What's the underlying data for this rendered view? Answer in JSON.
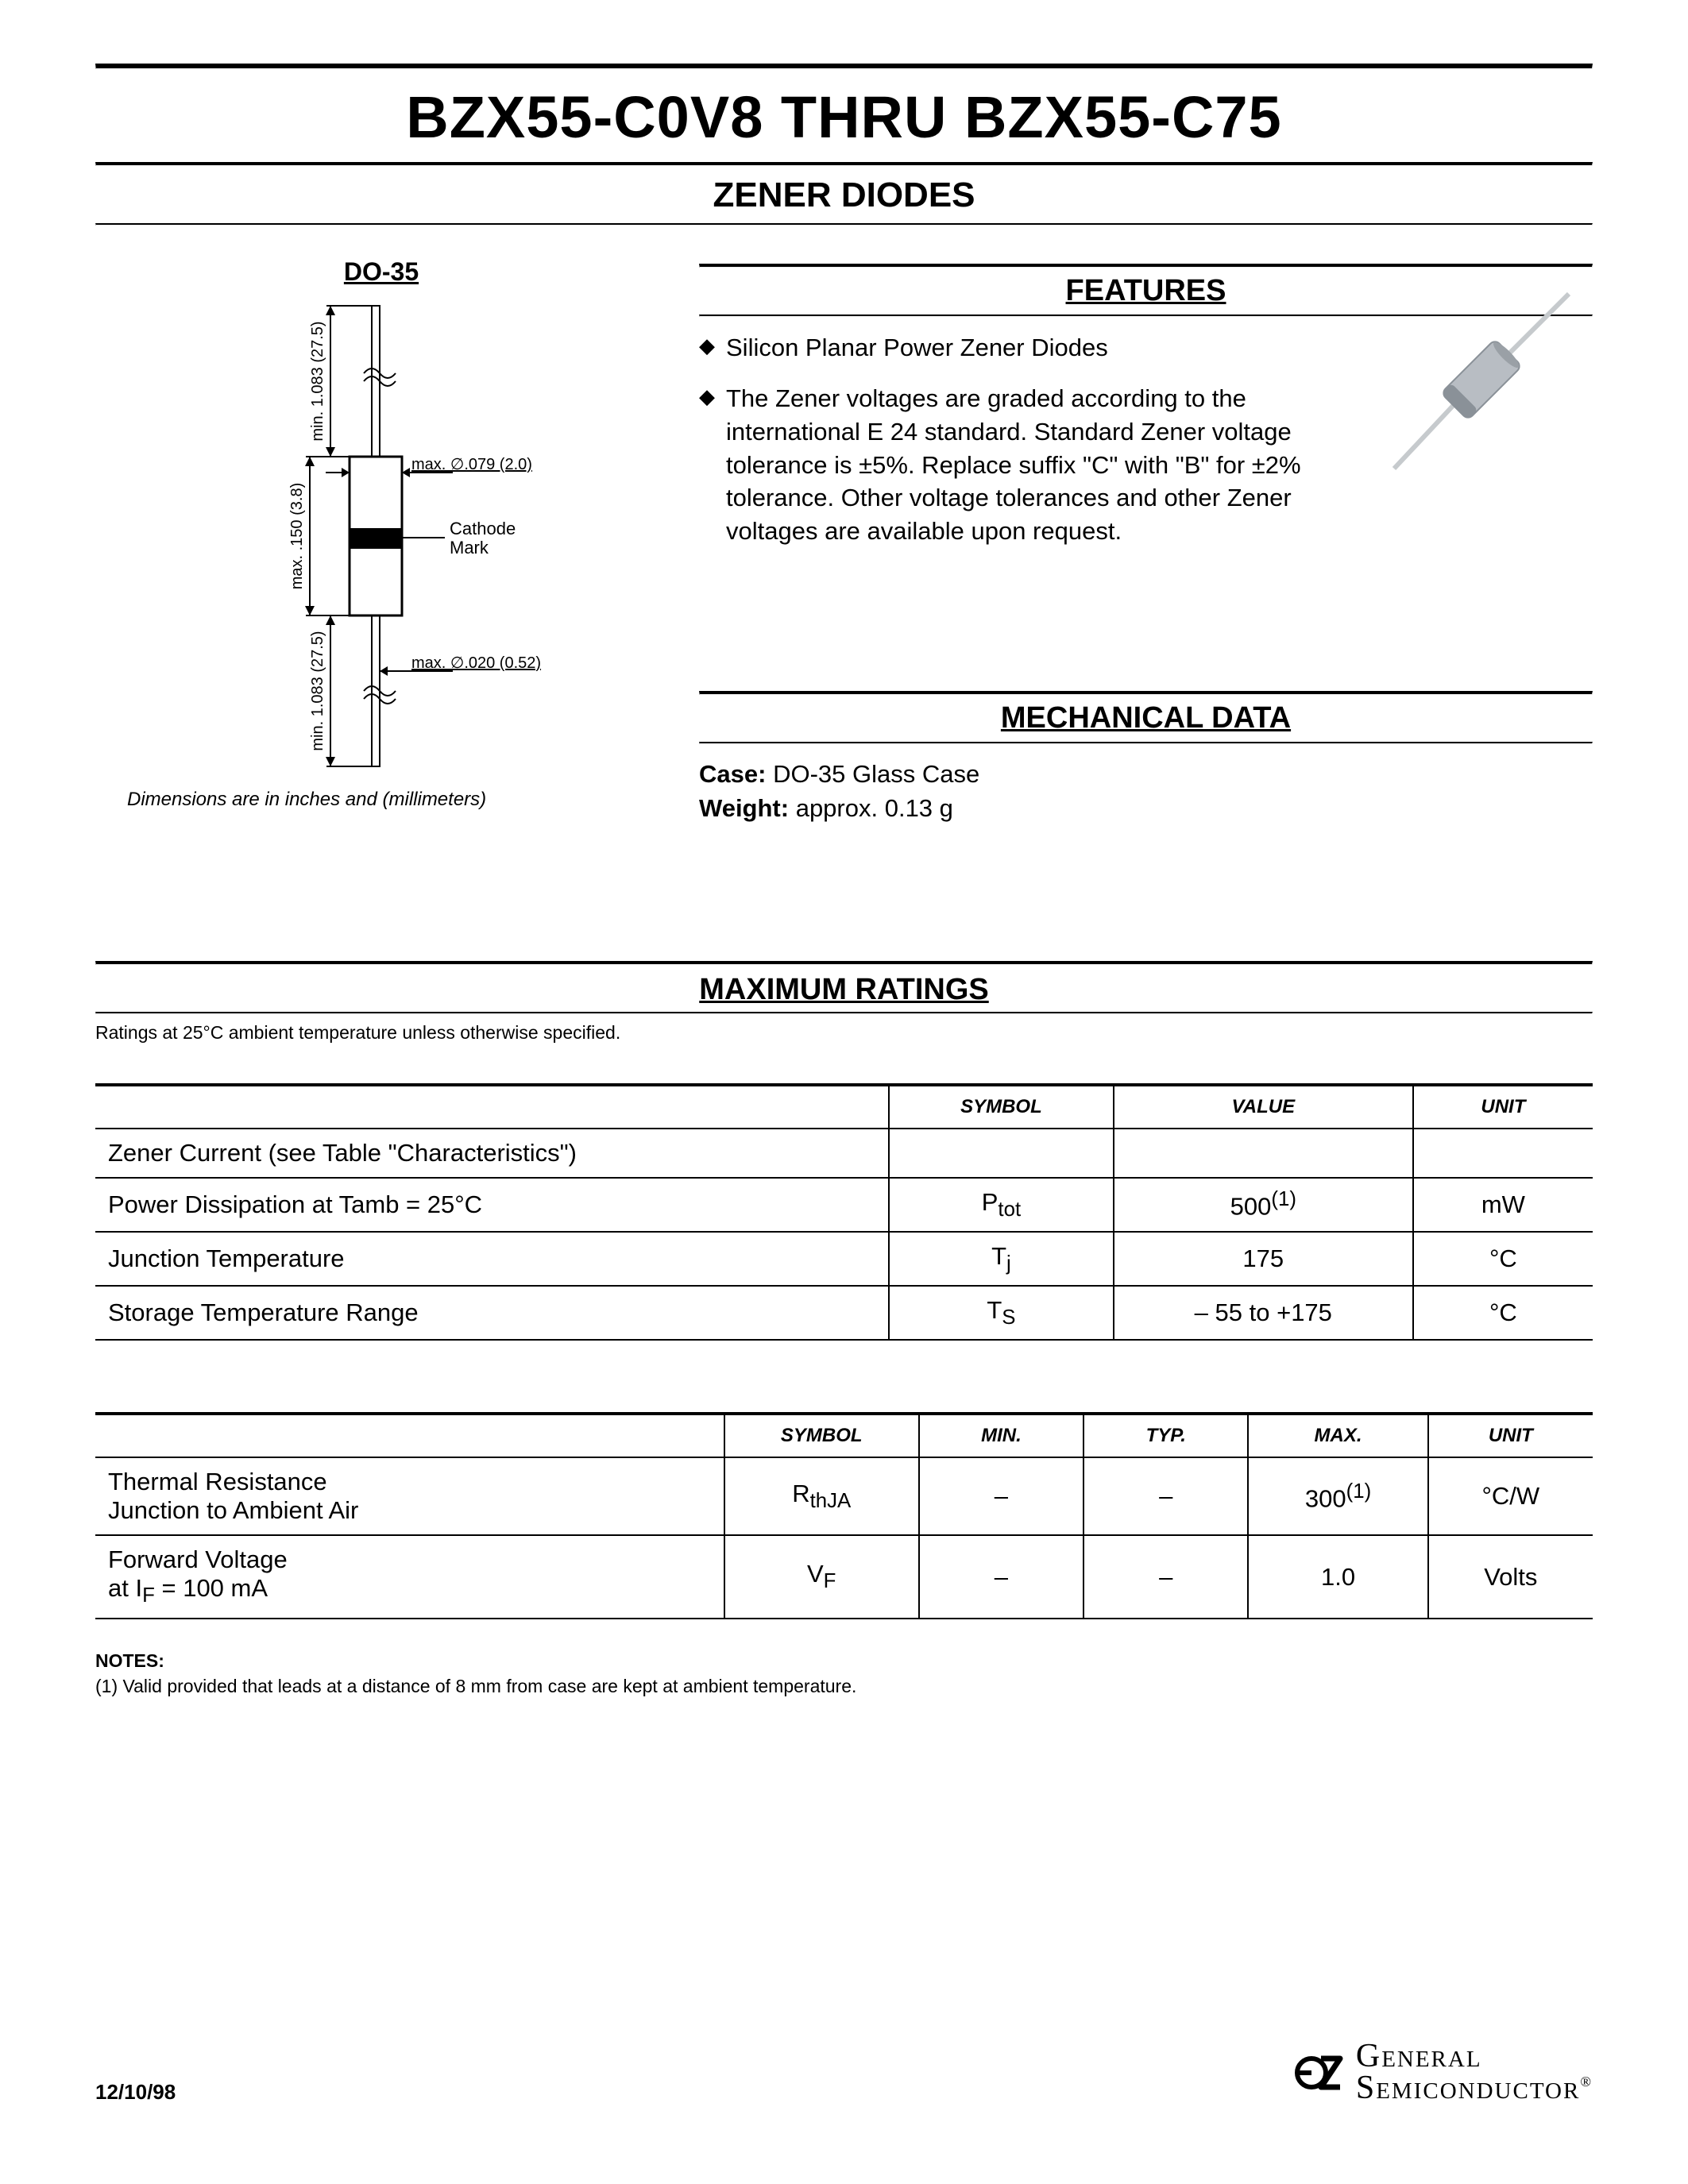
{
  "title": "BZX55-C0V8 THRU BZX55-C75",
  "subtitle": "ZENER DIODES",
  "package": {
    "label": "DO-35",
    "caption": "Dimensions are in inches and (millimeters)",
    "dims": {
      "body_len": "max. .150 (3.8)",
      "lead_len": "min. 1.083 (27.5)",
      "lead_len2": "min. 1.083 (27.5)",
      "body_dia": "max. ∅.079 (2.0)",
      "lead_dia": "max. ∅.020 (0.52)",
      "cathode": "Cathode\nMark"
    }
  },
  "features": {
    "heading": "FEATURES",
    "items": [
      "Silicon Planar Power Zener Diodes",
      "The Zener voltages are graded according to the international E 24 standard. Standard Zener voltage tolerance is ±5%. Replace suffix \"C\" with \"B\" for ±2% tolerance. Other voltage tolerances and other Zener voltages are available upon request."
    ]
  },
  "mechanical": {
    "heading": "MECHANICAL DATA",
    "case_label": "Case:",
    "case_value": "DO-35 Glass Case",
    "weight_label": "Weight:",
    "weight_value": "approx. 0.13 g"
  },
  "max_ratings": {
    "heading": "MAXIMUM RATINGS",
    "note": "Ratings at 25°C ambient temperature unless otherwise specified.",
    "cols": [
      "",
      "SYMBOL",
      "VALUE",
      "UNIT"
    ],
    "rows": [
      {
        "p": "Zener Current (see Table \"Characteristics\")",
        "sym": "",
        "val": "",
        "unit": ""
      },
      {
        "p": "Power Dissipation at Tamb = 25°C",
        "sym": "P<sub>tot</sub>",
        "val": "500<sup>(1)</sup>",
        "unit": "mW"
      },
      {
        "p": "Junction Temperature",
        "sym": "T<sub>j</sub>",
        "val": "175",
        "unit": "°C"
      },
      {
        "p": "Storage Temperature Range",
        "sym": "T<sub>S</sub>",
        "val": "– 55 to +175",
        "unit": "°C"
      }
    ]
  },
  "table2": {
    "cols": [
      "",
      "SYMBOL",
      "MIN.",
      "TYP.",
      "MAX.",
      "UNIT"
    ],
    "rows": [
      {
        "p": "Thermal Resistance<br>Junction to Ambient Air",
        "sym": "R<sub>thJA</sub>",
        "min": "–",
        "typ": "–",
        "max": "300<sup>(1)</sup>",
        "unit": "°C/W"
      },
      {
        "p": "Forward Voltage<br>at I<sub>F</sub> = 100 mA",
        "sym": "V<sub>F</sub>",
        "min": "–",
        "typ": "–",
        "max": "1.0",
        "unit": "Volts"
      }
    ]
  },
  "notes": {
    "heading": "NOTES:",
    "items": [
      "(1) Valid provided that leads at a distance of 8 mm from case are kept at ambient temperature."
    ]
  },
  "footer": {
    "date": "12/10/98",
    "logo1": "General",
    "logo2": "Semiconductor"
  },
  "colors": {
    "text": "#000000",
    "bg": "#ffffff",
    "diode_body": "#b8bdc3",
    "diode_body_dark": "#8a9198",
    "lead": "#d9dcdf"
  }
}
